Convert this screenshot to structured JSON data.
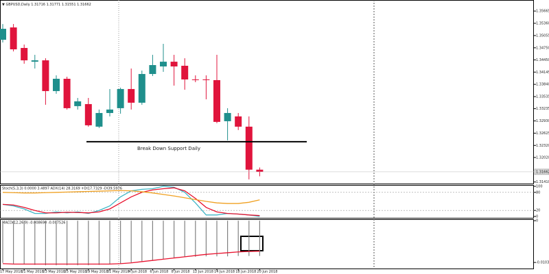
{
  "chart_data": [
    {
      "type": "candlestick",
      "title": "GBPUSD,Daily",
      "categories": [
        "17 May 2018",
        null,
        "21 May 2018",
        null,
        "23 May 2018",
        null,
        "25 May 2018",
        null,
        "29 May 2018",
        null,
        "31 May 2018",
        null,
        "4 Jun 2018",
        null,
        "6 Jun 2018",
        null,
        "8 Jun 2018",
        null,
        "12 Jun 2018",
        null,
        "14 Jun 2018",
        null,
        "18 Jun 2018",
        null,
        "20 Jun 2018"
      ],
      "candles": [
        {
          "open": 1.3495,
          "high": 1.35342,
          "low": 1.34882,
          "close": 1.35223
        },
        {
          "open": 1.35257,
          "high": 1.35342,
          "low": 1.3466,
          "close": 1.34712
        },
        {
          "open": 1.34746,
          "high": 1.34831,
          "low": 1.34354,
          "close": 1.34438
        },
        {
          "open": 1.34404,
          "high": 1.34575,
          "low": 1.34234,
          "close": 1.34438
        },
        {
          "open": 1.34438,
          "high": 1.3449,
          "low": 1.33332,
          "close": 1.33673
        },
        {
          "open": 1.33673,
          "high": 1.34064,
          "low": 1.33605,
          "close": 1.33979
        },
        {
          "open": 1.33979,
          "high": 1.3403,
          "low": 1.33213,
          "close": 1.33247
        },
        {
          "open": 1.33298,
          "high": 1.33502,
          "low": 1.33213,
          "close": 1.33417
        },
        {
          "open": 1.33349,
          "high": 1.33502,
          "low": 1.32787,
          "close": 1.32821
        },
        {
          "open": 1.32787,
          "high": 1.33213,
          "low": 1.32753,
          "close": 1.33127
        },
        {
          "open": 1.33127,
          "high": 1.33724,
          "low": 1.33042,
          "close": 1.33213
        },
        {
          "open": 1.33247,
          "high": 1.33758,
          "low": 1.3311,
          "close": 1.33724
        },
        {
          "open": 1.33724,
          "high": 1.34234,
          "low": 1.33213,
          "close": 1.33383
        },
        {
          "open": 1.33383,
          "high": 1.34183,
          "low": 1.33332,
          "close": 1.34098
        },
        {
          "open": 1.34098,
          "high": 1.34575,
          "low": 1.34047,
          "close": 1.3432
        },
        {
          "open": 1.34286,
          "high": 1.34848,
          "low": 1.34152,
          "close": 1.34404
        },
        {
          "open": 1.34404,
          "high": 1.34575,
          "low": 1.33809,
          "close": 1.34286
        },
        {
          "open": 1.34303,
          "high": 1.3449,
          "low": 1.33707,
          "close": 1.33962
        },
        {
          "open": 1.33962,
          "high": 1.34064,
          "low": 1.33894,
          "close": 1.33945
        },
        {
          "open": 1.33962,
          "high": 1.34064,
          "low": 1.33468,
          "close": 1.33945
        },
        {
          "open": 1.33945,
          "high": 1.34575,
          "low": 1.32872,
          "close": 1.32906
        },
        {
          "open": 1.32923,
          "high": 1.33247,
          "low": 1.32446,
          "close": 1.33127
        },
        {
          "open": 1.33042,
          "high": 1.33127,
          "low": 1.32703,
          "close": 1.32787
        },
        {
          "open": 1.32787,
          "high": 1.33042,
          "low": 1.31474,
          "close": 1.31716
        },
        {
          "open": 1.31716,
          "high": 1.31771,
          "low": 1.31551,
          "close": 1.31662
        }
      ],
      "up_color": "#1f8f8c",
      "down_color": "#e0143c",
      "ylim": [
        1.3137,
        1.3594
      ],
      "yticks": [
        1.35665,
        {
          "value": 1.3536,
          "label": "1.35360"
        },
        1.35055,
        {
          "value": 1.3475,
          "label": "1.34750"
        },
        {
          "value": 1.3445,
          "label": "1.34450"
        },
        1.34145,
        {
          "value": 1.3384,
          "label": "1.33840"
        },
        1.33535,
        1.33235,
        {
          "value": 1.3293,
          "label": "1.32930"
        },
        1.32625,
        {
          "value": 1.3232,
          "label": "1.32320"
        },
        {
          "value": 1.3202,
          "label": "1.32020"
        },
        {
          "value": 1.3141,
          "label": "1.31410"
        }
      ],
      "support_line": {
        "label": "Break Down Support Daily",
        "value": 1.32412
      }
    },
    {
      "type": "line",
      "title": "Stoch(5,3,3) 0.0000 3.4897 ADX(14) 28.3169 +DI17.7329 -DI39.5976",
      "series": [
        {
          "color": "#3fb6c6",
          "values": [
            40,
            35,
            25,
            10,
            10,
            15,
            12,
            15,
            10,
            20,
            35,
            65,
            85,
            90,
            92,
            100,
            97,
            80,
            45,
            5,
            5,
            10,
            8,
            5,
            0
          ]
        },
        {
          "color": "#e8102c",
          "values": [
            40,
            38,
            30,
            20,
            12,
            12,
            14,
            13,
            12,
            15,
            25,
            45,
            65,
            80,
            88,
            92,
            95,
            85,
            60,
            30,
            15,
            10,
            8,
            5,
            3
          ]
        },
        {
          "color": "#f0a020",
          "values": [
            80,
            79,
            78,
            78,
            79,
            80,
            81,
            82,
            83,
            84,
            85,
            86,
            85,
            82,
            78,
            73,
            68,
            62,
            56,
            50,
            45,
            43,
            43,
            47,
            55
          ]
        }
      ],
      "ylim": [
        0,
        100
      ],
      "yticks": [
        100,
        80,
        20,
        0
      ],
      "levels": [
        80,
        20
      ]
    },
    {
      "type": "macd",
      "title": "MACD(12,26,9) -0.008690 -0.007526",
      "values": [
        -0.0104,
        -0.0106,
        -0.0108,
        -0.0109,
        -0.011,
        -0.011,
        -0.011,
        -0.011,
        -0.011,
        -0.0109,
        -0.0108,
        -0.0106,
        -0.0103,
        -0.01,
        -0.0097,
        -0.0094,
        -0.0092,
        -0.009,
        -0.0089,
        -0.0088,
        -0.0088,
        -0.0088,
        -0.0087,
        -0.0087,
        -0.00869
      ],
      "color": "#808080",
      "signal_values": [
        -0.0106,
        -0.0107,
        -0.0107,
        -0.0107,
        -0.0107,
        -0.0107,
        -0.0107,
        -0.0107,
        -0.0107,
        -0.0107,
        -0.0107,
        -0.0106,
        -0.0104,
        -0.0101,
        -0.0098,
        -0.0095,
        -0.0092,
        -0.0089,
        -0.0086,
        -0.0083,
        -0.0081,
        -0.0079,
        -0.0077,
        -0.0076,
        -0.007526
      ],
      "signal_color": "#e8102c",
      "ylim": [
        -0.0118,
        0.0002
      ],
      "yticks": [
        0,
        -0.010304
      ]
    }
  ]
}
